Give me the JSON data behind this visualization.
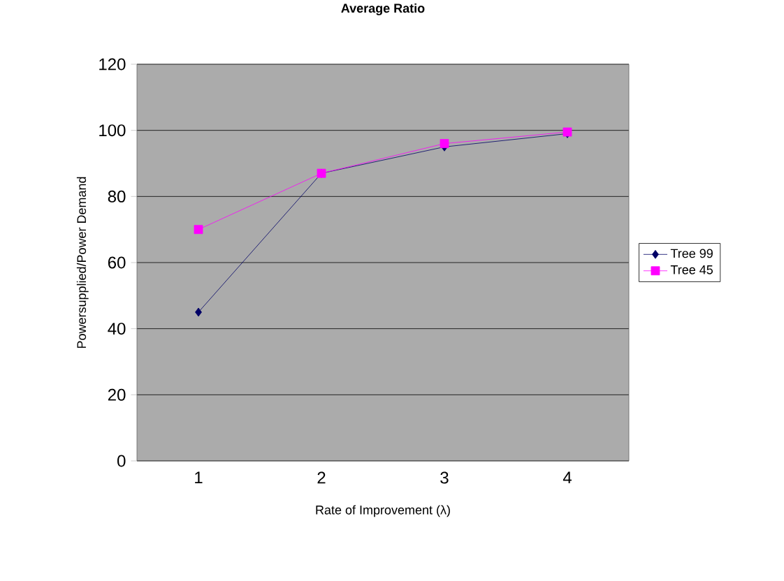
{
  "chart_data": {
    "type": "line",
    "title": "Average Ratio",
    "xlabel": "Rate of Improvement (λ)",
    "ylabel": "Powersupplied/Power Demand",
    "categories": [
      "1",
      "2",
      "3",
      "4"
    ],
    "series": [
      {
        "name": "Tree 99",
        "color": "#000066",
        "marker": "diamond",
        "values": [
          45,
          87,
          95,
          99
        ]
      },
      {
        "name": "Tree 45",
        "color": "#ff00ff",
        "marker": "square",
        "values": [
          70,
          87,
          96,
          99.5
        ]
      }
    ],
    "ylim": [
      0,
      120
    ],
    "yticks": [
      0,
      20,
      40,
      60,
      80,
      100,
      120
    ],
    "grid": "y",
    "legend": "right",
    "line_style": "solid"
  }
}
